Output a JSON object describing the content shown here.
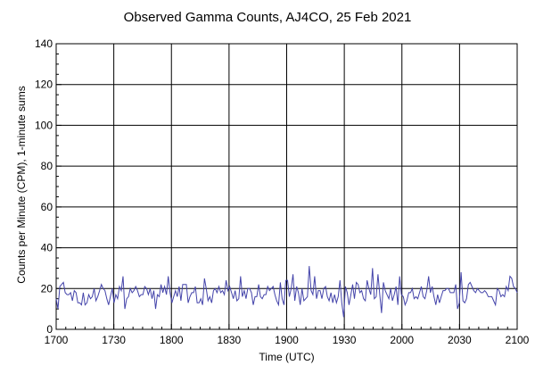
{
  "chart_data": {
    "type": "line",
    "title": "Observed Gamma Counts, AJ4CO, 25 Feb 2021",
    "xlabel": "Time (UTC)",
    "ylabel": "Counts per Minute (CPM), 1-minute sums",
    "xlim_minutes": [
      0,
      240
    ],
    "ylim": [
      0,
      140
    ],
    "x_ticks": [
      "1700",
      "1730",
      "1800",
      "1830",
      "1900",
      "1930",
      "2000",
      "2030",
      "2100"
    ],
    "y_ticks": [
      "0",
      "20",
      "40",
      "60",
      "80",
      "100",
      "120",
      "140"
    ],
    "grid": true,
    "line_color": "#4444aa",
    "series": [
      {
        "values": [
          15,
          10,
          21,
          22,
          23,
          18,
          17,
          17,
          18,
          14,
          19,
          18,
          13,
          13,
          12,
          18,
          12,
          13,
          17,
          15,
          16,
          20,
          14,
          16,
          19,
          22,
          20,
          19,
          15,
          12,
          16,
          20,
          13,
          17,
          15,
          21,
          19,
          26,
          10,
          15,
          16,
          20,
          18,
          19,
          21,
          19,
          16,
          17,
          17,
          21,
          20,
          17,
          20,
          15,
          19,
          10,
          17,
          16,
          22,
          18,
          21,
          17,
          26,
          18,
          13,
          16,
          19,
          16,
          21,
          14,
          22,
          22,
          22,
          13,
          16,
          18,
          18,
          21,
          13,
          13,
          15,
          12,
          25,
          20,
          14,
          16,
          13,
          19,
          20,
          18,
          21,
          18,
          19,
          17,
          24,
          19,
          21,
          18,
          15,
          19,
          14,
          15,
          26,
          16,
          19,
          15,
          20,
          20,
          18,
          12,
          16,
          16,
          22,
          16,
          15,
          17,
          17,
          21,
          19,
          20,
          21,
          17,
          14,
          12,
          23,
          15,
          12,
          24,
          24,
          16,
          20,
          27,
          14,
          21,
          18,
          12,
          20,
          14,
          15,
          16,
          31,
          19,
          17,
          26,
          15,
          19,
          19,
          15,
          20,
          21,
          16,
          14,
          18,
          13,
          17,
          13,
          16,
          24,
          13,
          6,
          21,
          18,
          12,
          17,
          22,
          15,
          23,
          22,
          18,
          19,
          15,
          14,
          24,
          20,
          17,
          30,
          15,
          16,
          27,
          17,
          8,
          23,
          19,
          17,
          15,
          20,
          14,
          17,
          21,
          12,
          26,
          17,
          16,
          12,
          14,
          18,
          18,
          20,
          15,
          16,
          15,
          18,
          21,
          16,
          15,
          19,
          26,
          18,
          21,
          16,
          12,
          17,
          13,
          16,
          19,
          19,
          20,
          20,
          18,
          18,
          18,
          22,
          10,
          13,
          28,
          14,
          13,
          15,
          22,
          23,
          21,
          19,
          18,
          20,
          19,
          18,
          18,
          19,
          18,
          16,
          16,
          16,
          14,
          12,
          20,
          19,
          16,
          17,
          16,
          21,
          19,
          26,
          25,
          21,
          20,
          18
        ]
      }
    ]
  }
}
